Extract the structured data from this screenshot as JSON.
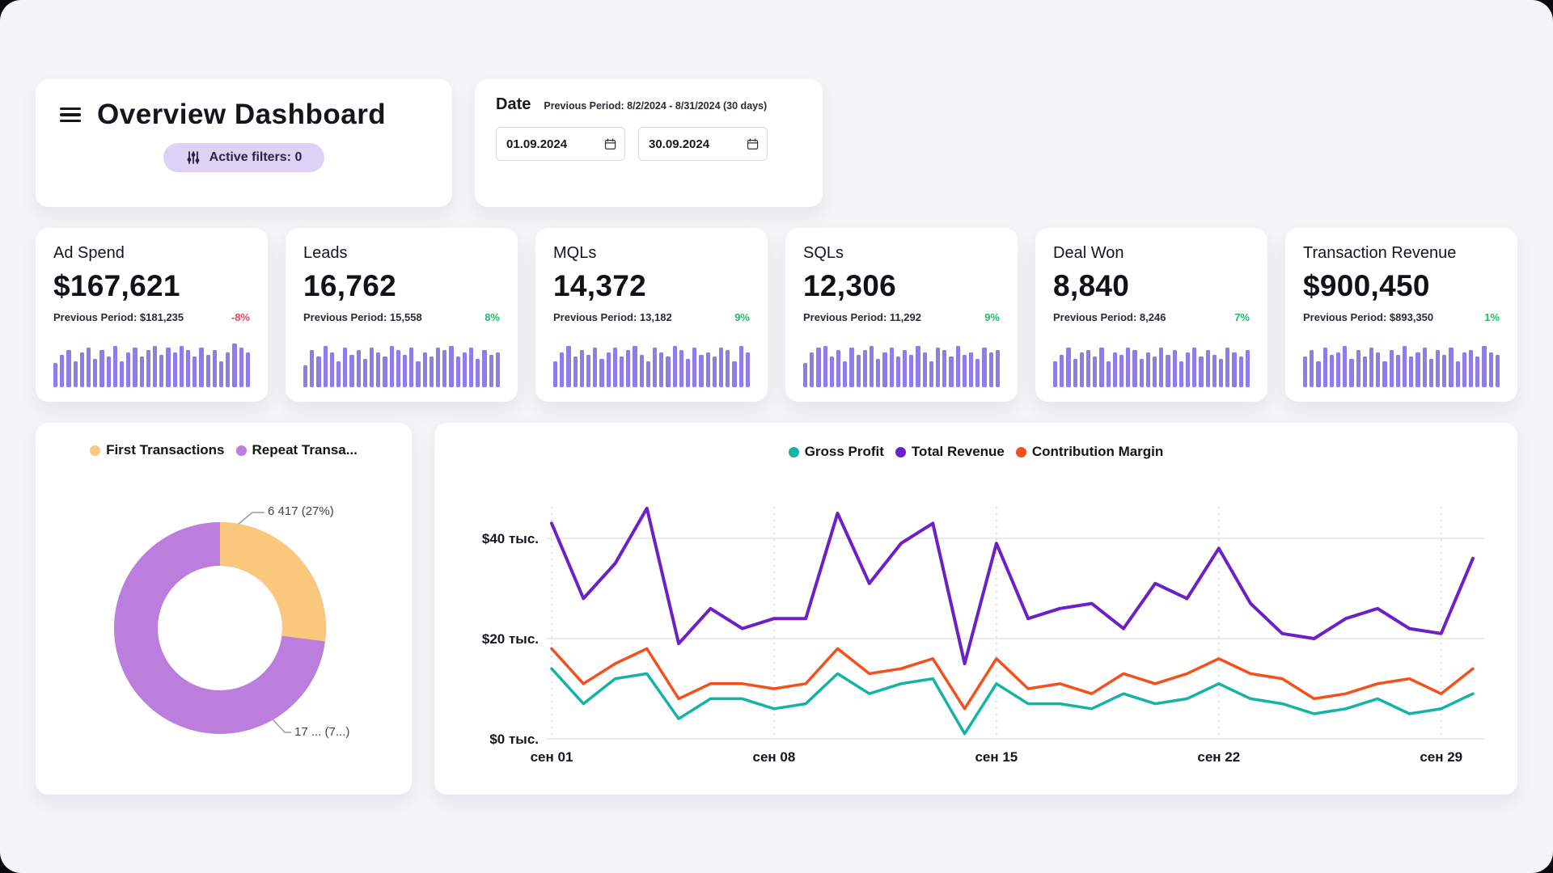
{
  "header": {
    "title": "Overview Dashboard",
    "active_filters": "Active filters: 0"
  },
  "date_panel": {
    "label": "Date",
    "previous_period": "Previous Period: 8/2/2024 - 8/31/2024 (30 days)",
    "start_date": "01.09.2024",
    "end_date": "30.09.2024"
  },
  "colors": {
    "bar": "#8f7ce9",
    "positive": "#22b96d",
    "negative": "#ef4456",
    "pill_bg": "#dcd2f6",
    "grid": "#dddde3",
    "grid_dashed": "#c9c2ec"
  },
  "kpis": [
    {
      "title": "Ad Spend",
      "value": "$167,621",
      "previous": "Previous Period: $181,235",
      "delta": "-8%",
      "delta_positive": false,
      "bars": [
        0.55,
        0.75,
        0.85,
        0.6,
        0.8,
        0.9,
        0.65,
        0.85,
        0.7,
        0.95,
        0.6,
        0.8,
        0.9,
        0.7,
        0.85,
        0.95,
        0.75,
        0.9,
        0.8,
        0.95,
        0.85,
        0.7,
        0.9,
        0.75,
        0.85,
        0.6,
        0.8,
        1.0,
        0.9,
        0.8
      ]
    },
    {
      "title": "Leads",
      "value": "16,762",
      "previous": "Previous Period: 15,558",
      "delta": "8%",
      "delta_positive": true,
      "bars": [
        0.5,
        0.85,
        0.7,
        0.95,
        0.8,
        0.6,
        0.9,
        0.75,
        0.85,
        0.65,
        0.9,
        0.8,
        0.7,
        0.95,
        0.85,
        0.75,
        0.9,
        0.6,
        0.8,
        0.7,
        0.9,
        0.85,
        0.95,
        0.7,
        0.8,
        0.9,
        0.65,
        0.85,
        0.75,
        0.8
      ]
    },
    {
      "title": "MQLs",
      "value": "14,372",
      "previous": "Previous Period: 13,182",
      "delta": "9%",
      "delta_positive": true,
      "bars": [
        0.6,
        0.8,
        0.95,
        0.7,
        0.85,
        0.75,
        0.9,
        0.65,
        0.8,
        0.9,
        0.7,
        0.85,
        0.95,
        0.75,
        0.6,
        0.9,
        0.8,
        0.7,
        0.95,
        0.85,
        0.65,
        0.9,
        0.75,
        0.8,
        0.7,
        0.9,
        0.85,
        0.6,
        0.95,
        0.8
      ]
    },
    {
      "title": "SQLs",
      "value": "12,306",
      "previous": "Previous Period: 11,292",
      "delta": "9%",
      "delta_positive": true,
      "bars": [
        0.55,
        0.8,
        0.9,
        0.95,
        0.7,
        0.85,
        0.6,
        0.9,
        0.75,
        0.85,
        0.95,
        0.65,
        0.8,
        0.9,
        0.7,
        0.85,
        0.75,
        0.95,
        0.8,
        0.6,
        0.9,
        0.85,
        0.7,
        0.95,
        0.75,
        0.8,
        0.65,
        0.9,
        0.8,
        0.85
      ]
    },
    {
      "title": "Deal Won",
      "value": "8,840",
      "previous": "Previous Period: 8,246",
      "delta": "7%",
      "delta_positive": true,
      "bars": [
        0.6,
        0.75,
        0.9,
        0.65,
        0.8,
        0.85,
        0.7,
        0.9,
        0.6,
        0.8,
        0.75,
        0.9,
        0.85,
        0.65,
        0.8,
        0.7,
        0.9,
        0.75,
        0.85,
        0.6,
        0.8,
        0.9,
        0.7,
        0.85,
        0.75,
        0.65,
        0.9,
        0.8,
        0.7,
        0.85
      ]
    },
    {
      "title": "Transaction Revenue",
      "value": "$900,450",
      "previous": "Previous Period: $893,350",
      "delta": "1%",
      "delta_positive": true,
      "bars": [
        0.7,
        0.85,
        0.6,
        0.9,
        0.75,
        0.8,
        0.95,
        0.65,
        0.85,
        0.7,
        0.9,
        0.8,
        0.6,
        0.85,
        0.75,
        0.95,
        0.7,
        0.8,
        0.9,
        0.65,
        0.85,
        0.75,
        0.9,
        0.6,
        0.8,
        0.85,
        0.7,
        0.95,
        0.8,
        0.75
      ]
    }
  ],
  "chart_data": [
    {
      "type": "pie",
      "legend": [
        "First Transactions",
        "Repeat Transa..."
      ],
      "labels": [
        "First Transactions",
        "Repeat Transactions"
      ],
      "values_pct": [
        27,
        73
      ],
      "callouts": [
        "6 417 (27%)",
        "17 ... (7...)"
      ],
      "colors": [
        "#f9c87c",
        "#bb7edd"
      ]
    },
    {
      "type": "line",
      "title": "",
      "x_tick_labels": [
        "сен 01",
        "сен 08",
        "сен 15",
        "сен 22",
        "сен 29"
      ],
      "x_tick_indices": [
        0,
        7,
        14,
        21,
        28
      ],
      "y_ticks": [
        {
          "label": "$40 тыс.",
          "value": 40
        },
        {
          "label": "$20 тыс.",
          "value": 20
        },
        {
          "label": "$0 тыс.",
          "value": 0
        }
      ],
      "ylim": [
        0,
        48
      ],
      "legend_position": "top",
      "grid": true,
      "series": [
        {
          "name": "Gross Profit",
          "color": "#14b3a3",
          "values": [
            14,
            7,
            12,
            13,
            4,
            8,
            8,
            6,
            7,
            13,
            9,
            11,
            12,
            1,
            11,
            7,
            7,
            6,
            9,
            7,
            8,
            11,
            8,
            7,
            5,
            6,
            8,
            5,
            6,
            9
          ]
        },
        {
          "name": "Total Revenue",
          "color": "#6d1fc8",
          "values": [
            43,
            28,
            35,
            46,
            19,
            26,
            22,
            24,
            24,
            45,
            31,
            39,
            43,
            15,
            39,
            24,
            26,
            27,
            22,
            31,
            28,
            38,
            27,
            21,
            20,
            24,
            26,
            22,
            21,
            36
          ]
        },
        {
          "name": "Contribution Margin",
          "color": "#f4501e",
          "values": [
            18,
            11,
            15,
            18,
            8,
            11,
            11,
            10,
            11,
            18,
            13,
            14,
            16,
            6,
            16,
            10,
            11,
            9,
            13,
            11,
            13,
            16,
            13,
            12,
            8,
            9,
            11,
            12,
            9,
            14
          ]
        }
      ]
    }
  ]
}
